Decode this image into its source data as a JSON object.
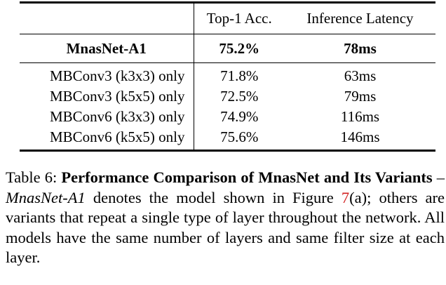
{
  "table": {
    "headers": [
      "",
      "Top-1 Acc.",
      "Inference Latency"
    ],
    "highlight": {
      "model": "MnasNet-A1",
      "acc": "75.2%",
      "latency": "78ms"
    },
    "rows": [
      {
        "model": "MBConv3 (k3x3) only",
        "acc": "71.8%",
        "latency": "63ms"
      },
      {
        "model": "MBConv3 (k5x5) only",
        "acc": "72.5%",
        "latency": "79ms"
      },
      {
        "model": "MBConv6 (k3x3) only",
        "acc": "74.9%",
        "latency": "116ms"
      },
      {
        "model": "MBConv6 (k5x5) only",
        "acc": "75.6%",
        "latency": "146ms"
      }
    ]
  },
  "caption": {
    "label": "Table 6:",
    "title": "Performance Comparison of MnasNet and Its Variants",
    "dash": "–",
    "model_name": "MnasNet-A1",
    "text1": "denotes the model shown in Figure",
    "figure_ref": "7",
    "text2": "(a); others are variants that repeat a single type of layer throughout the network. All models have the same number of layers and same filter size at each layer."
  },
  "colors": {
    "text": "#000000",
    "reference": "#d21f1f"
  }
}
